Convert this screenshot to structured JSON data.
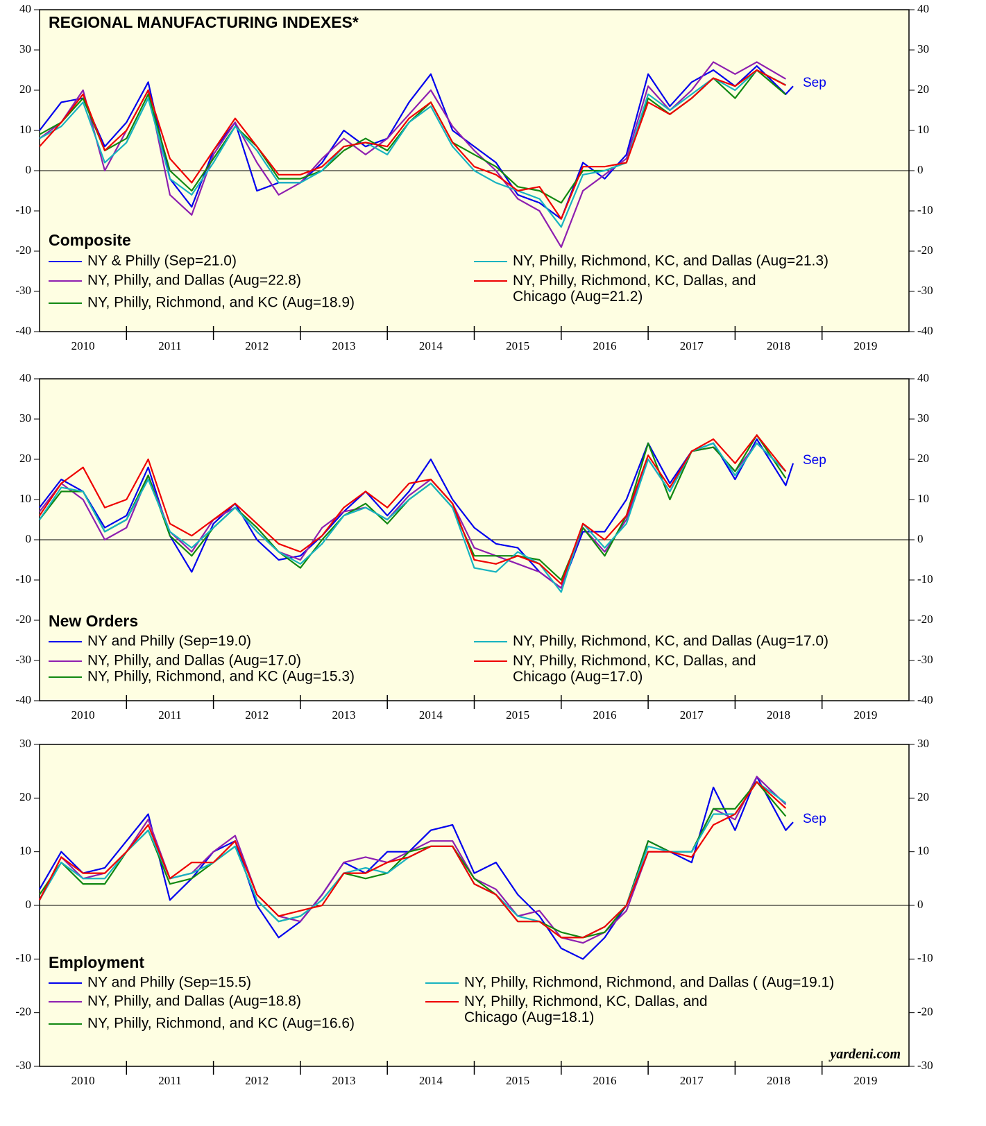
{
  "chart_data": [
    {
      "type": "line",
      "title": "REGIONAL MANUFACTURING INDEXES*",
      "subtitle": "Composite",
      "annotation": "Sep",
      "x": [
        2010,
        2010.25,
        2010.5,
        2010.75,
        2011,
        2011.25,
        2011.5,
        2011.75,
        2012,
        2012.25,
        2012.5,
        2012.75,
        2013,
        2013.25,
        2013.5,
        2013.75,
        2014,
        2014.25,
        2014.5,
        2014.75,
        2015,
        2015.25,
        2015.5,
        2015.75,
        2016,
        2016.25,
        2016.5,
        2016.75,
        2017,
        2017.25,
        2017.5,
        2017.75,
        2018,
        2018.25,
        2018.583,
        2018.667
      ],
      "xlim": [
        2010,
        2020
      ],
      "xticks": [
        {
          "value": 2010,
          "label": "2010"
        },
        {
          "value": 2011,
          "label": "2011"
        },
        {
          "value": 2012,
          "label": "2012"
        },
        {
          "value": 2013,
          "label": "2013"
        },
        {
          "value": 2014,
          "label": "2014"
        },
        {
          "value": 2015,
          "label": "2015"
        },
        {
          "value": 2016,
          "label": "2016"
        },
        {
          "value": 2017,
          "label": "2017"
        },
        {
          "value": 2018,
          "label": "2018"
        },
        {
          "value": 2019,
          "label": "2019"
        }
      ],
      "ylim": [
        -40,
        40
      ],
      "yticks": [
        -40,
        -30,
        -20,
        -10,
        0,
        10,
        20,
        30,
        40
      ],
      "series": [
        {
          "name": "NY & Philly (Sep=21.0)",
          "color": "#0000ee",
          "values": [
            10,
            17,
            18,
            6,
            12,
            22,
            -2,
            -9,
            5,
            12,
            -5,
            -3,
            -3,
            2,
            10,
            6,
            8,
            17,
            24,
            10,
            6,
            2,
            -6,
            -8,
            -12,
            2,
            -2,
            4,
            24,
            16,
            22,
            25,
            21,
            26,
            19,
            21
          ]
        },
        {
          "name": "NY, Philly, and Dallas (Aug=22.8)",
          "color": "#8e1fb0",
          "values": [
            8,
            12,
            20,
            0,
            10,
            20,
            -6,
            -11,
            4,
            12,
            2,
            -6,
            -3,
            3,
            8,
            4,
            8,
            14,
            20,
            11,
            5,
            0,
            -7,
            -10,
            -19,
            -5,
            -1,
            3,
            21,
            15,
            20,
            27,
            24,
            27,
            22.8,
            null
          ]
        },
        {
          "name": "NY, Philly, Richmond, and KC (Aug=18.9)",
          "color": "#118811",
          "values": [
            9,
            12,
            18,
            5,
            8,
            19,
            0,
            -5,
            3,
            11,
            6,
            -2,
            -2,
            0,
            5,
            8,
            5,
            12,
            17,
            7,
            4,
            1,
            -4,
            -5,
            -8,
            0,
            0,
            2,
            18,
            14,
            18,
            23,
            18,
            25,
            18.9,
            null
          ]
        },
        {
          "name": "NY, Philly, Richmond, KC, and Dallas (Aug=21.3)",
          "color": "#17b3c0",
          "values": [
            8,
            11,
            17,
            2,
            7,
            18,
            -2,
            -6,
            2,
            11,
            5,
            -3,
            -3,
            0,
            6,
            7,
            4,
            12,
            16,
            6,
            0,
            -3,
            -5,
            -7,
            -14,
            -1,
            0,
            2,
            19,
            15,
            19,
            23,
            20,
            25,
            21.3,
            null
          ]
        },
        {
          "name": "NY, Philly, Richmond, KC, Dallas, and\nChicago (Aug=21.2)",
          "color": "#ee0000",
          "values": [
            6,
            12,
            19,
            5,
            10,
            20,
            3,
            -3,
            5,
            13,
            6,
            -1,
            -1,
            1,
            6,
            7,
            6,
            13,
            17,
            7,
            1,
            -1,
            -5,
            -4,
            -12,
            1,
            1,
            2,
            17,
            14,
            18,
            23,
            21,
            25,
            21.2,
            null
          ]
        }
      ]
    },
    {
      "type": "line",
      "subtitle": "New Orders",
      "annotation": "Sep",
      "x": [
        2010,
        2010.25,
        2010.5,
        2010.75,
        2011,
        2011.25,
        2011.5,
        2011.75,
        2012,
        2012.25,
        2012.5,
        2012.75,
        2013,
        2013.25,
        2013.5,
        2013.75,
        2014,
        2014.25,
        2014.5,
        2014.75,
        2015,
        2015.25,
        2015.5,
        2015.75,
        2016,
        2016.25,
        2016.5,
        2016.75,
        2017,
        2017.25,
        2017.5,
        2017.75,
        2018,
        2018.25,
        2018.583,
        2018.667
      ],
      "xlim": [
        2010,
        2020
      ],
      "xticks": [
        {
          "value": 2010,
          "label": "2010"
        },
        {
          "value": 2011,
          "label": "2011"
        },
        {
          "value": 2012,
          "label": "2012"
        },
        {
          "value": 2013,
          "label": "2013"
        },
        {
          "value": 2014,
          "label": "2014"
        },
        {
          "value": 2015,
          "label": "2015"
        },
        {
          "value": 2016,
          "label": "2016"
        },
        {
          "value": 2017,
          "label": "2017"
        },
        {
          "value": 2018,
          "label": "2018"
        },
        {
          "value": 2019,
          "label": "2019"
        }
      ],
      "ylim": [
        -40,
        40
      ],
      "yticks": [
        -40,
        -30,
        -20,
        -10,
        0,
        10,
        20,
        30,
        40
      ],
      "series": [
        {
          "name": "NY and Philly (Sep=19.0)",
          "color": "#0000ee",
          "values": [
            8,
            15,
            12,
            3,
            6,
            18,
            1,
            -8,
            4,
            9,
            0,
            -5,
            -4,
            1,
            7,
            12,
            6,
            12,
            20,
            10,
            3,
            -1,
            -2,
            -8,
            -12,
            2,
            2,
            10,
            24,
            14,
            22,
            24,
            15,
            25,
            13.5,
            19
          ]
        },
        {
          "name": "NY, Philly, and Dallas (Aug=17.0)",
          "color": "#8e1fb0",
          "values": [
            7,
            14,
            10,
            0,
            3,
            16,
            2,
            -3,
            5,
            8,
            2,
            -3,
            -5,
            3,
            7,
            8,
            5,
            11,
            15,
            9,
            -2,
            -4,
            -6,
            -8,
            -12,
            3,
            -3,
            5,
            20,
            12,
            22,
            23,
            17,
            24,
            17,
            null
          ]
        },
        {
          "name": "NY, Philly, Richmond, and KC (Aug=15.3)",
          "color": "#118811",
          "values": [
            5,
            12,
            12,
            2,
            5,
            16,
            1,
            -4,
            3,
            8,
            3,
            -3,
            -7,
            0,
            6,
            9,
            4,
            10,
            14,
            8,
            -4,
            -4,
            -4,
            -5,
            -10,
            3,
            -4,
            6,
            24,
            10,
            22,
            23,
            17,
            26,
            15.3,
            null
          ]
        },
        {
          "name": "NY, Philly, Richmond, KC, and Dallas (Aug=17.0)",
          "color": "#17b3c0",
          "values": [
            5,
            13,
            12,
            2,
            5,
            15,
            2,
            -2,
            3,
            8,
            2,
            -3,
            -6,
            -1,
            6,
            8,
            5,
            10,
            14,
            8,
            -7,
            -8,
            -3,
            -6,
            -13,
            4,
            -2,
            4,
            20,
            12,
            22,
            24,
            16,
            24,
            17,
            null
          ]
        },
        {
          "name": "NY, Philly, Richmond, KC, Dallas, and\nChicago (Aug=17.0)",
          "color": "#ee0000",
          "values": [
            6,
            14,
            18,
            8,
            10,
            20,
            4,
            1,
            5,
            9,
            4,
            -1,
            -3,
            1,
            8,
            12,
            8,
            14,
            15,
            9,
            -5,
            -6,
            -4,
            -6,
            -11,
            4,
            0,
            6,
            21,
            13,
            22,
            25,
            19,
            26,
            17,
            null
          ]
        }
      ]
    },
    {
      "type": "line",
      "subtitle": "Employment",
      "annotation": "Sep",
      "source": "yardeni.com",
      "x": [
        2010,
        2010.25,
        2010.5,
        2010.75,
        2011,
        2011.25,
        2011.5,
        2011.75,
        2012,
        2012.25,
        2012.5,
        2012.75,
        2013,
        2013.25,
        2013.5,
        2013.75,
        2014,
        2014.25,
        2014.5,
        2014.75,
        2015,
        2015.25,
        2015.5,
        2015.75,
        2016,
        2016.25,
        2016.5,
        2016.75,
        2017,
        2017.25,
        2017.5,
        2017.75,
        2018,
        2018.25,
        2018.583,
        2018.667
      ],
      "xlim": [
        2010,
        2020
      ],
      "xticks": [
        {
          "value": 2010,
          "label": "2010"
        },
        {
          "value": 2011,
          "label": "2011"
        },
        {
          "value": 2012,
          "label": "2012"
        },
        {
          "value": 2013,
          "label": "2013"
        },
        {
          "value": 2014,
          "label": "2014"
        },
        {
          "value": 2015,
          "label": "2015"
        },
        {
          "value": 2016,
          "label": "2016"
        },
        {
          "value": 2017,
          "label": "2017"
        },
        {
          "value": 2018,
          "label": "2018"
        },
        {
          "value": 2019,
          "label": "2019"
        }
      ],
      "ylim": [
        -30,
        30
      ],
      "yticks": [
        -30,
        -20,
        -10,
        0,
        10,
        20,
        30
      ],
      "series": [
        {
          "name": "NY and Philly (Sep=15.5)",
          "color": "#0000ee",
          "values": [
            3,
            10,
            6,
            7,
            12,
            17,
            1,
            5,
            10,
            12,
            0,
            -6,
            -3,
            2,
            8,
            6,
            10,
            10,
            14,
            15,
            6,
            8,
            2,
            -2,
            -8,
            -10,
            -6,
            0,
            12,
            10,
            8,
            22,
            14,
            24,
            14,
            15.5
          ]
        },
        {
          "name": "NY, Philly, and Dallas (Aug=18.8)",
          "color": "#8e1fb0",
          "values": [
            1,
            9,
            5,
            6,
            10,
            16,
            5,
            6,
            10,
            13,
            2,
            -2,
            -3,
            2,
            8,
            9,
            8,
            10,
            12,
            12,
            5,
            3,
            -2,
            -1,
            -6,
            -7,
            -5,
            -1,
            10,
            10,
            10,
            18,
            16,
            24,
            18.8,
            null
          ]
        },
        {
          "name": "NY, Philly, Richmond, and KC (Aug=16.6)",
          "color": "#118811",
          "values": [
            2,
            8,
            4,
            4,
            10,
            14,
            4,
            5,
            8,
            11,
            1,
            -3,
            -2,
            1,
            6,
            5,
            6,
            10,
            11,
            11,
            5,
            2,
            -3,
            -3,
            -5,
            -6,
            -5,
            0,
            12,
            10,
            10,
            18,
            18,
            23,
            16.6,
            null
          ]
        },
        {
          "name": "NY, Philly, Richmond, Richmond, and Dallas ( (Aug=19.1)",
          "color": "#17b3c0",
          "values": [
            1,
            8,
            5,
            5,
            10,
            14,
            5,
            6,
            8,
            11,
            1,
            -3,
            -2,
            1,
            6,
            7,
            6,
            9,
            11,
            11,
            4,
            2,
            -2,
            -3,
            -6,
            -6,
            -4,
            0,
            11,
            10,
            10,
            17,
            17,
            23,
            19.1,
            null
          ]
        },
        {
          "name": "NY, Philly, Richmond, KC, Dallas, and\nChicago (Aug=18.1)",
          "color": "#ee0000",
          "values": [
            1,
            9,
            6,
            6,
            10,
            15,
            5,
            8,
            8,
            12,
            2,
            -2,
            -1,
            0,
            6,
            6,
            8,
            9,
            11,
            11,
            4,
            2,
            -3,
            -3,
            -6,
            -6,
            -4,
            0,
            10,
            10,
            9,
            15,
            17,
            23,
            18.1,
            null
          ]
        }
      ]
    }
  ]
}
